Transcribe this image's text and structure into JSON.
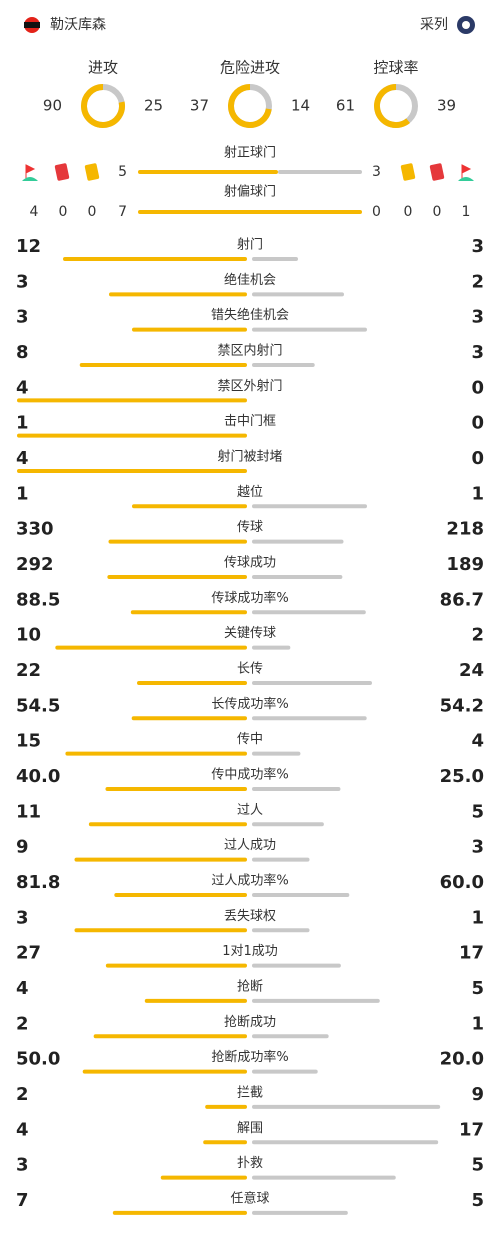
{
  "header": {
    "home": "勒沃库森",
    "away": "采列"
  },
  "summary": [
    {
      "label": "进攻",
      "home": 90,
      "away": 25
    },
    {
      "label": "危险进攻",
      "home": 37,
      "away": 14
    },
    {
      "label": "控球率",
      "home": 61,
      "away": 39
    }
  ],
  "discipline": {
    "home": {
      "corners": 4,
      "red_cards": 0,
      "yellow_cards": 0
    },
    "away": {
      "yellow_cards": 0,
      "red_cards": 0,
      "corners": 1
    }
  },
  "shots_on_target": {
    "label": "射正球门",
    "home": 5,
    "away": 3
  },
  "shots_off_target": {
    "label": "射偏球门",
    "home": 7,
    "away": 0
  },
  "stats": [
    {
      "label": "射门",
      "home": 12,
      "away": 3
    },
    {
      "label": "绝佳机会",
      "home": 3,
      "away": 2
    },
    {
      "label": "错失绝佳机会",
      "home": 3,
      "away": 3
    },
    {
      "label": "禁区内射门",
      "home": 8,
      "away": 3
    },
    {
      "label": "禁区外射门",
      "home": 4,
      "away": 0
    },
    {
      "label": "击中门框",
      "home": 1,
      "away": 0
    },
    {
      "label": "射门被封堵",
      "home": 4,
      "away": 0
    },
    {
      "label": "越位",
      "home": 1,
      "away": 1
    },
    {
      "label": "传球",
      "home": 330,
      "away": 218
    },
    {
      "label": "传球成功",
      "home": 292,
      "away": 189
    },
    {
      "label": "传球成功率%",
      "home": 88.5,
      "away": 86.7
    },
    {
      "label": "关键传球",
      "home": 10,
      "away": 2
    },
    {
      "label": "长传",
      "home": 22,
      "away": 24
    },
    {
      "label": "长传成功率%",
      "home": 54.5,
      "away": 54.2
    },
    {
      "label": "传中",
      "home": 15,
      "away": 4
    },
    {
      "label": "传中成功率%",
      "home": {
        "value": 40,
        "label": "40.0"
      },
      "away": {
        "value": 25,
        "label": "25.0"
      }
    },
    {
      "label": "过人",
      "home": 11,
      "away": 5
    },
    {
      "label": "过人成功",
      "home": 9,
      "away": 3
    },
    {
      "label": "过人成功率%",
      "home": 81.8,
      "away": {
        "value": 60,
        "label": "60.0"
      }
    },
    {
      "label": "丢失球权",
      "home": 3,
      "away": 1
    },
    {
      "label": "1对1成功",
      "home": 27,
      "away": 17
    },
    {
      "label": "抢断",
      "home": 4,
      "away": 5
    },
    {
      "label": "抢断成功",
      "home": 2,
      "away": 1
    },
    {
      "label": "抢断成功率%",
      "home": {
        "value": 50,
        "label": "50.0"
      },
      "away": {
        "value": 20,
        "label": "20.0"
      }
    },
    {
      "label": "拦截",
      "home": 2,
      "away": 9
    },
    {
      "label": "解围",
      "home": 4,
      "away": 17
    },
    {
      "label": "扑救",
      "home": 3,
      "away": 5
    },
    {
      "label": "任意球",
      "home": 7,
      "away": 5
    }
  ]
}
